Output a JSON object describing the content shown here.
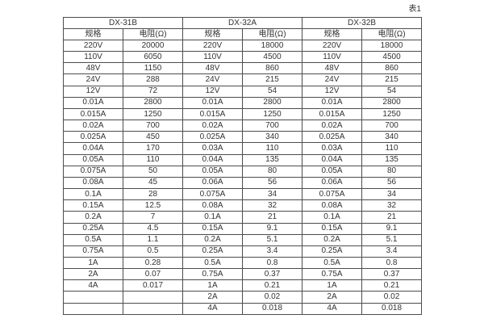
{
  "page": {
    "table_caption": "表1"
  },
  "table": {
    "groups": [
      {
        "name": "DX-31B",
        "col_spec": "规格",
        "col_resistance": "电阻(Ω)"
      },
      {
        "name": "DX-32A",
        "col_spec": "规格",
        "col_resistance": "电阻(Ω)"
      },
      {
        "name": "DX-32B",
        "col_spec": "规格",
        "col_resistance": "电阻(Ω)"
      }
    ],
    "rows": [
      [
        "220V",
        "20000",
        "220V",
        "18000",
        "220V",
        "18000"
      ],
      [
        "110V",
        "6050",
        "110V",
        "4500",
        "110V",
        "4500"
      ],
      [
        "48V",
        "1150",
        "48V",
        "860",
        "48V",
        "860"
      ],
      [
        "24V",
        "288",
        "24V",
        "215",
        "24V",
        "215"
      ],
      [
        "12V",
        "72",
        "12V",
        "54",
        "12V",
        "54"
      ],
      [
        "0.01A",
        "2800",
        "0.01A",
        "2800",
        "0.01A",
        "2800"
      ],
      [
        "0.015A",
        "1250",
        "0.015A",
        "1250",
        "0.015A",
        "1250"
      ],
      [
        "0.02A",
        "700",
        "0.02A",
        "700",
        "0.02A",
        "700"
      ],
      [
        "0.025A",
        "450",
        "0.025A",
        "340",
        "0.025A",
        "340"
      ],
      [
        "0.04A",
        "170",
        "0.03A",
        "110",
        "0.03A",
        "110"
      ],
      [
        "0.05A",
        "110",
        "0.04A",
        "135",
        "0.04A",
        "135"
      ],
      [
        "0.075A",
        "50",
        "0.05A",
        "80",
        "0.05A",
        "80"
      ],
      [
        "0.08A",
        "45",
        "0.06A",
        "56",
        "0.06A",
        "56"
      ],
      [
        "0.1A",
        "28",
        "0.075A",
        "34",
        "0.075A",
        "34"
      ],
      [
        "0.15A",
        "12.5",
        "0.08A",
        "32",
        "0.08A",
        "32"
      ],
      [
        "0.2A",
        "7",
        "0.1A",
        "21",
        "0.1A",
        "21"
      ],
      [
        "0.25A",
        "4.5",
        "0.15A",
        "9.1",
        "0.15A",
        "9.1"
      ],
      [
        "0.5A",
        "1.1",
        "0.2A",
        "5.1",
        "0.2A",
        "5.1"
      ],
      [
        "0.75A",
        "0.5",
        "0.25A",
        "3.4",
        "0.25A",
        "3.4"
      ],
      [
        "1A",
        "0.28",
        "0.5A",
        "0.8",
        "0.5A",
        "0.8"
      ],
      [
        "2A",
        "0.07",
        "0.75A",
        "0.37",
        "0.75A",
        "0.37"
      ],
      [
        "4A",
        "0.017",
        "1A",
        "0.21",
        "1A",
        "0.21"
      ],
      [
        "",
        "",
        "2A",
        "0.02",
        "2A",
        "0.02"
      ],
      [
        "",
        "",
        "4A",
        "0.018",
        "4A",
        "0.018"
      ]
    ]
  },
  "colors": {
    "background": "#ffffff",
    "border": "#4d4d4d",
    "text": "#333333"
  }
}
